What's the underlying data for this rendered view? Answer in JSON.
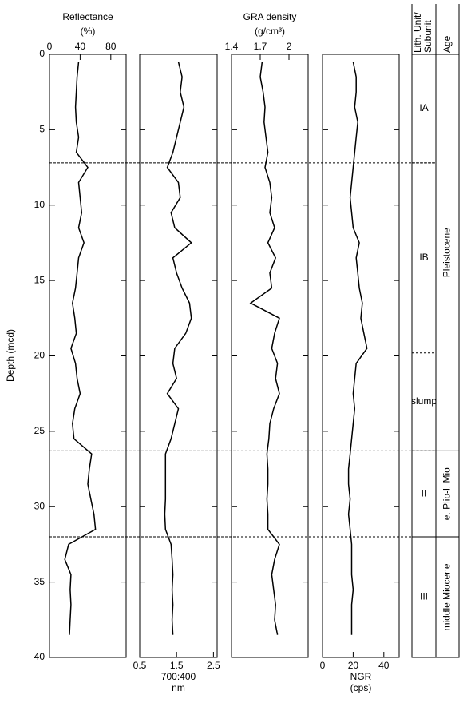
{
  "chart_data": {
    "type": "line",
    "ylabel": "Depth (mcd)",
    "ylim": [
      0,
      40
    ],
    "yticks": [
      0,
      5,
      10,
      15,
      20,
      25,
      30,
      35,
      40
    ],
    "color": "#000000",
    "depth": [
      0.5,
      1.5,
      2.5,
      3.5,
      4.5,
      5.5,
      6.5,
      7.5,
      8.5,
      9.5,
      10.5,
      11.5,
      12.5,
      13.5,
      14.5,
      15.5,
      16.5,
      17.5,
      18.5,
      19.5,
      20.5,
      21.5,
      22.5,
      23.5,
      24.5,
      25.5,
      26.5,
      27.5,
      28.5,
      29.5,
      30.5,
      31.5,
      32.5,
      33.5,
      34.5,
      35.5,
      36.5,
      37.5,
      38.5
    ],
    "panels": [
      {
        "title": "Reflectance",
        "unit": "(%)",
        "axis": "top",
        "xlim": [
          0,
          100
        ],
        "xticks": [
          0,
          40,
          80
        ],
        "values": [
          38,
          36,
          35,
          34,
          35,
          38,
          35,
          50,
          38,
          40,
          42,
          38,
          45,
          38,
          36,
          34,
          30,
          33,
          35,
          28,
          34,
          36,
          40,
          33,
          30,
          32,
          55,
          52,
          50,
          54,
          58,
          60,
          25,
          20,
          28,
          27,
          28,
          27,
          26
        ]
      },
      {
        "title": "700:400",
        "unit": "nm",
        "axis": "bottom",
        "xlim": [
          0.5,
          2.6
        ],
        "xticks": [
          0.5,
          1.5,
          2.5
        ],
        "values": [
          1.55,
          1.65,
          1.6,
          1.7,
          1.6,
          1.5,
          1.4,
          1.25,
          1.55,
          1.6,
          1.35,
          1.45,
          1.9,
          1.4,
          1.5,
          1.65,
          1.85,
          1.9,
          1.75,
          1.45,
          1.4,
          1.5,
          1.25,
          1.55,
          1.45,
          1.35,
          1.2,
          1.2,
          1.2,
          1.2,
          1.18,
          1.2,
          1.35,
          1.38,
          1.4,
          1.38,
          1.4,
          1.38,
          1.4
        ]
      },
      {
        "title": "GRA density",
        "unit": "(g/cm³)",
        "axis": "top",
        "xlim": [
          1.4,
          2.2
        ],
        "xticks": [
          1.4,
          1.7,
          2
        ],
        "values": [
          1.72,
          1.7,
          1.73,
          1.75,
          1.74,
          1.76,
          1.78,
          1.75,
          1.8,
          1.82,
          1.8,
          1.85,
          1.78,
          1.86,
          1.8,
          1.82,
          1.6,
          1.9,
          1.85,
          1.82,
          1.88,
          1.86,
          1.9,
          1.84,
          1.8,
          1.79,
          1.77,
          1.78,
          1.78,
          1.77,
          1.78,
          1.78,
          1.9,
          1.85,
          1.82,
          1.84,
          1.86,
          1.85,
          1.88
        ]
      },
      {
        "title": "NGR",
        "unit": "(cps)",
        "axis": "bottom",
        "xlim": [
          0,
          50
        ],
        "xticks": [
          0,
          20,
          40
        ],
        "values": [
          20,
          22,
          22,
          21,
          23,
          22,
          21,
          20,
          19,
          18,
          19,
          20,
          24,
          22,
          23,
          24,
          26,
          25,
          27,
          29,
          22,
          21,
          20,
          21,
          20,
          19,
          18,
          17,
          17,
          18,
          17,
          18,
          19,
          19,
          19,
          20,
          19,
          19,
          19
        ]
      }
    ],
    "boundaries": [
      7.2,
      26.3,
      32
    ],
    "unit_header": [
      "Lith. Unit/",
      "Subunit"
    ],
    "age_header": "Age",
    "units": [
      {
        "label": "IA",
        "top": 0,
        "bottom": 7.2
      },
      {
        "label": "IB",
        "top": 7.2,
        "bottom": 19.8
      },
      {
        "label": "slump",
        "top": 19.8,
        "bottom": 26.3
      },
      {
        "label": "II",
        "top": 26.3,
        "bottom": 32
      },
      {
        "label": "III",
        "top": 32,
        "bottom": 40
      }
    ],
    "ages": [
      {
        "label": "Pleistocene",
        "top": 0,
        "bottom": 26.3
      },
      {
        "label": "e. Plio-l. Mio",
        "top": 26.3,
        "bottom": 32
      },
      {
        "label": "middle Miocene",
        "top": 32,
        "bottom": 40
      }
    ]
  }
}
